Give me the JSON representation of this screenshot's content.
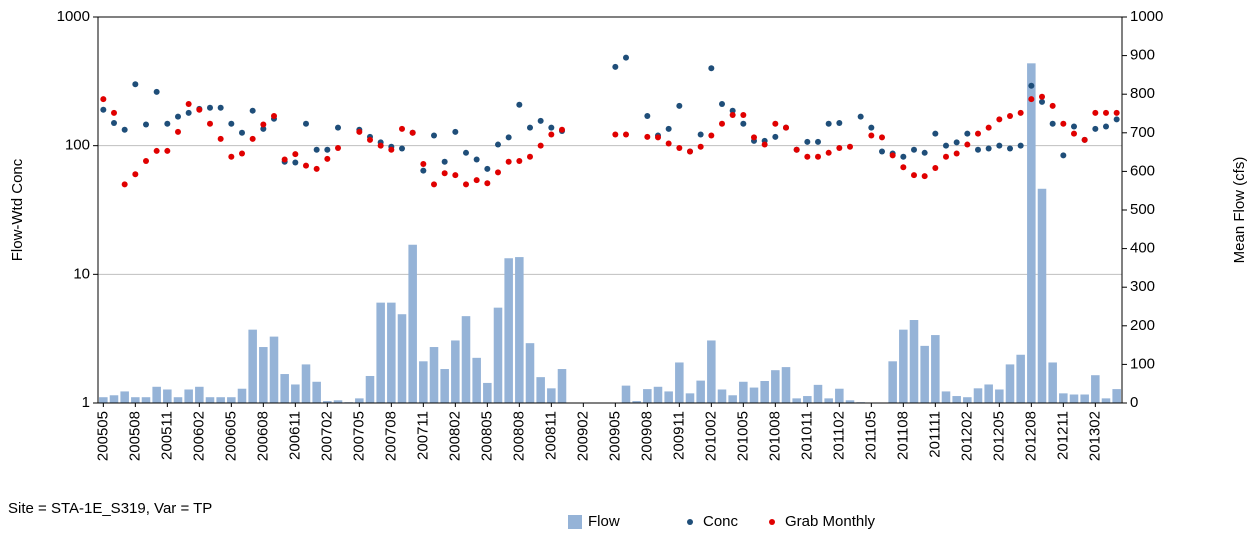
{
  "chart_data": {
    "type": "combo",
    "axis_label_y": "Flow-Wtd Conc",
    "axis_label_y2": "Mean Flow (cfs)",
    "footnote": "Site = STA-1E_S319, Var = TP",
    "categories": [
      "200505",
      null,
      null,
      "200508",
      null,
      null,
      "200511",
      null,
      null,
      "200602",
      null,
      null,
      "200605",
      null,
      null,
      "200608",
      null,
      null,
      "200611",
      null,
      null,
      "200702",
      null,
      null,
      "200705",
      null,
      null,
      "200708",
      null,
      null,
      "200711",
      null,
      null,
      "200802",
      null,
      null,
      "200805",
      null,
      null,
      "200808",
      null,
      null,
      "200811",
      null,
      null,
      "200902",
      null,
      null,
      "200905",
      null,
      null,
      "200908",
      null,
      null,
      "200911",
      null,
      null,
      "201002",
      null,
      null,
      "201005",
      null,
      null,
      "201008",
      null,
      null,
      "201011",
      null,
      null,
      "201102",
      null,
      null,
      "201105",
      null,
      null,
      "201108",
      null,
      null,
      "201111",
      null,
      null,
      "201202",
      null,
      null,
      "201205",
      null,
      null,
      "201208",
      null,
      null,
      "201211",
      null,
      null,
      "201302",
      null,
      null
    ],
    "ylim": [
      1,
      1000
    ],
    "yticks": [
      1,
      10,
      100,
      1000
    ],
    "ylog": true,
    "grid": true,
    "y2lim": [
      0,
      1000
    ],
    "y2ticks": [
      0,
      100,
      200,
      300,
      400,
      500,
      600,
      700,
      800,
      900,
      1000
    ],
    "legend": "bottom",
    "series": [
      {
        "name": "Flow",
        "type": "bar",
        "axis": "y2",
        "color": "#95b3d7",
        "values": [
          15,
          20,
          30,
          15,
          15,
          42,
          35,
          15,
          35,
          42,
          15,
          15,
          15,
          37,
          190,
          145,
          172,
          75,
          48,
          100,
          55,
          5,
          7,
          2,
          12,
          70,
          260,
          260,
          230,
          410,
          108,
          145,
          88,
          162,
          225,
          117,
          52,
          247,
          375,
          378,
          155,
          67,
          38,
          88,
          0,
          0,
          0,
          0,
          0,
          45,
          5,
          36,
          42,
          30,
          105,
          25,
          58,
          162,
          35,
          20,
          55,
          40,
          57,
          85,
          93,
          12,
          18,
          47,
          12,
          37,
          7,
          2,
          0,
          0,
          108,
          190,
          215,
          148,
          176,
          30,
          18,
          15,
          38,
          48,
          35,
          100,
          125,
          880,
          555,
          105,
          25,
          22,
          22,
          72,
          12,
          36
        ]
      },
      {
        "name": "Conc",
        "type": "scatter",
        "color": "#1f4e79",
        "values": [
          190,
          150,
          133,
          300,
          146,
          262,
          148,
          168,
          180,
          193,
          197,
          197,
          148,
          126,
          187,
          135,
          162,
          75,
          74,
          148,
          93,
          93,
          138,
          null,
          133,
          117,
          106,
          98,
          95,
          126,
          64,
          120,
          75,
          128,
          88,
          78,
          66,
          102,
          116,
          208,
          138,
          156,
          138,
          130,
          null,
          null,
          null,
          null,
          410,
          483,
          null,
          170,
          120,
          135,
          204,
          90,
          122,
          400,
          211,
          187,
          148,
          109,
          109,
          117,
          138,
          93,
          107,
          107,
          148,
          150,
          null,
          168,
          138,
          90,
          87,
          82,
          93,
          88,
          124,
          100,
          106,
          124,
          93,
          95,
          100,
          95,
          100,
          292,
          219,
          148,
          84,
          141,
          111,
          135,
          141,
          160
        ]
      },
      {
        "name": "Grab Monthly",
        "type": "scatter",
        "color": "#e00000",
        "values": [
          230,
          180,
          50,
          60,
          76,
          91,
          91,
          128,
          211,
          190,
          148,
          113,
          82,
          87,
          113,
          146,
          170,
          78,
          86,
          70,
          66,
          79,
          96,
          null,
          128,
          111,
          100,
          93,
          135,
          126,
          72,
          50,
          61,
          59,
          50,
          54,
          51,
          62,
          75,
          76,
          82,
          100,
          122,
          133,
          null,
          null,
          null,
          null,
          122,
          122,
          null,
          117,
          116,
          104,
          96,
          90,
          98,
          120,
          148,
          173,
          173,
          116,
          102,
          148,
          138,
          93,
          82,
          82,
          88,
          96,
          98,
          null,
          120,
          116,
          84,
          68,
          59,
          58,
          67,
          82,
          87,
          102,
          124,
          138,
          160,
          170,
          180,
          230,
          240,
          204,
          148,
          124,
          111,
          180,
          180,
          180
        ]
      }
    ]
  }
}
